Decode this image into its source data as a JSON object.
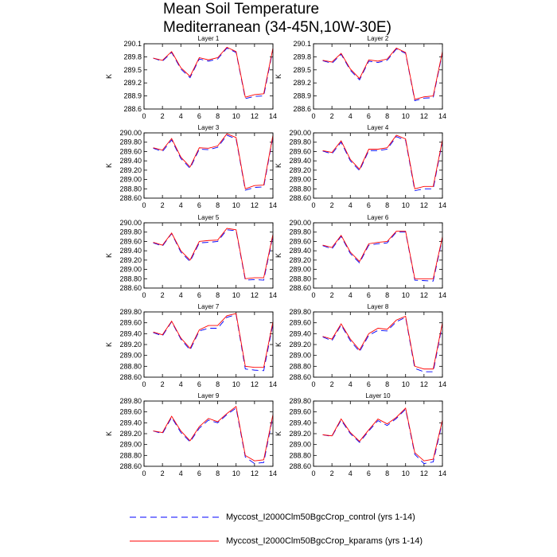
{
  "title": [
    "Mean Soil Temperature",
    "Mediterranean (34-45N,10W-30E)"
  ],
  "series": [
    {
      "name": "Myccost_I2000Clm50BgcCrop_control (yrs 1-14)",
      "color": "#0000ff",
      "dash": "dashed"
    },
    {
      "name": "Myccost_I2000Clm50BgcCrop_kparams (yrs 1-14)",
      "color": "#ff0000",
      "dash": "solid"
    }
  ],
  "chart_data": [
    {
      "type": "line",
      "title": "Layer 1",
      "ylabel": "K",
      "x": [
        1,
        2,
        3,
        4,
        5,
        6,
        7,
        8,
        9,
        10,
        11,
        12,
        13,
        14
      ],
      "xlim": [
        0,
        14
      ],
      "xticks": [
        0,
        2,
        4,
        6,
        8,
        10,
        12,
        14
      ],
      "ylim": [
        288.6,
        290.1
      ],
      "yticks": [
        288.6,
        288.9,
        289.2,
        289.5,
        289.8,
        290.1
      ],
      "series": [
        {
          "values": [
            289.77,
            289.7,
            289.9,
            289.52,
            289.32,
            289.75,
            289.7,
            289.75,
            290.0,
            289.9,
            288.84,
            288.89,
            288.9,
            289.97
          ]
        },
        {
          "values": [
            289.77,
            289.72,
            289.92,
            289.55,
            289.35,
            289.78,
            289.73,
            289.78,
            290.02,
            289.92,
            288.87,
            288.93,
            288.95,
            290.0
          ]
        }
      ]
    },
    {
      "type": "line",
      "title": "Layer 2",
      "ylabel": "K",
      "x": [
        1,
        2,
        3,
        4,
        5,
        6,
        7,
        8,
        9,
        10,
        11,
        12,
        13,
        14
      ],
      "xlim": [
        0,
        14
      ],
      "xticks": [
        0,
        2,
        4,
        6,
        8,
        10,
        12,
        14
      ],
      "ylim": [
        288.6,
        290.1
      ],
      "yticks": [
        288.6,
        288.9,
        289.2,
        289.5,
        289.8,
        290.1
      ],
      "series": [
        {
          "values": [
            289.71,
            289.65,
            289.86,
            289.49,
            289.27,
            289.7,
            289.67,
            289.72,
            289.98,
            289.88,
            288.79,
            288.85,
            288.86,
            289.89
          ]
        },
        {
          "values": [
            289.72,
            289.68,
            289.88,
            289.52,
            289.3,
            289.73,
            289.7,
            289.75,
            290.0,
            289.9,
            288.82,
            288.88,
            288.9,
            289.92
          ]
        }
      ]
    },
    {
      "type": "line",
      "title": "Layer 3",
      "ylabel": "K",
      "x": [
        1,
        2,
        3,
        4,
        5,
        6,
        7,
        8,
        9,
        10,
        11,
        12,
        13,
        14
      ],
      "xlim": [
        0,
        14
      ],
      "xticks": [
        0,
        2,
        4,
        6,
        8,
        10,
        12,
        14
      ],
      "ylim": [
        288.6,
        290.0
      ],
      "yticks": [
        {
          "value": 288.6,
          "label": "288.60"
        },
        {
          "value": 288.8,
          "label": "288.80"
        },
        {
          "value": 289.0,
          "label": "289.00"
        },
        {
          "value": 289.2,
          "label": "289.20"
        },
        {
          "value": 289.4,
          "label": "289.40"
        },
        {
          "value": 289.6,
          "label": "289.60"
        },
        {
          "value": 289.8,
          "label": "289.80"
        },
        {
          "value": 290.0,
          "label": "290.00"
        }
      ],
      "series": [
        {
          "values": [
            289.67,
            289.6,
            289.85,
            289.45,
            289.24,
            289.65,
            289.64,
            289.69,
            289.95,
            289.87,
            288.77,
            288.83,
            288.84,
            289.92
          ]
        },
        {
          "values": [
            289.68,
            289.63,
            289.88,
            289.48,
            289.27,
            289.68,
            289.67,
            289.72,
            289.98,
            289.9,
            288.8,
            288.87,
            288.88,
            289.95
          ]
        }
      ]
    },
    {
      "type": "line",
      "title": "Layer 4",
      "ylabel": "K",
      "x": [
        1,
        2,
        3,
        4,
        5,
        6,
        7,
        8,
        9,
        10,
        11,
        12,
        13,
        14
      ],
      "xlim": [
        0,
        14
      ],
      "xticks": [
        0,
        2,
        4,
        6,
        8,
        10,
        12,
        14
      ],
      "ylim": [
        288.6,
        290.0
      ],
      "yticks": [
        {
          "value": 288.6,
          "label": "288.60"
        },
        {
          "value": 288.8,
          "label": "288.80"
        },
        {
          "value": 289.0,
          "label": "289.00"
        },
        {
          "value": 289.2,
          "label": "289.20"
        },
        {
          "value": 289.4,
          "label": "289.40"
        },
        {
          "value": 289.6,
          "label": "289.60"
        },
        {
          "value": 289.8,
          "label": "289.80"
        },
        {
          "value": 290.0,
          "label": "290.00"
        }
      ],
      "series": [
        {
          "values": [
            289.61,
            289.55,
            289.8,
            289.4,
            289.19,
            289.62,
            289.62,
            289.65,
            289.92,
            289.84,
            288.76,
            288.8,
            288.8,
            289.82
          ]
        },
        {
          "values": [
            289.62,
            289.58,
            289.83,
            289.43,
            289.22,
            289.65,
            289.65,
            289.68,
            289.95,
            289.87,
            288.8,
            288.85,
            288.85,
            289.85
          ]
        }
      ]
    },
    {
      "type": "line",
      "title": "Layer 5",
      "ylabel": "K",
      "x": [
        1,
        2,
        3,
        4,
        5,
        6,
        7,
        8,
        9,
        10,
        11,
        12,
        13,
        14
      ],
      "xlim": [
        0,
        14
      ],
      "xticks": [
        0,
        2,
        4,
        6,
        8,
        10,
        12,
        14
      ],
      "ylim": [
        288.6,
        290.0
      ],
      "yticks": [
        {
          "value": 288.6,
          "label": "288.60"
        },
        {
          "value": 288.8,
          "label": "288.80"
        },
        {
          "value": 289.0,
          "label": "289.00"
        },
        {
          "value": 289.2,
          "label": "289.20"
        },
        {
          "value": 289.4,
          "label": "289.40"
        },
        {
          "value": 289.6,
          "label": "289.60"
        },
        {
          "value": 289.8,
          "label": "289.80"
        },
        {
          "value": 290.0,
          "label": "290.00"
        }
      ],
      "series": [
        {
          "values": [
            289.57,
            289.5,
            289.77,
            289.37,
            289.17,
            289.57,
            289.58,
            289.6,
            289.85,
            289.83,
            288.77,
            288.78,
            288.77,
            289.72
          ]
        },
        {
          "values": [
            289.58,
            289.52,
            289.78,
            289.4,
            289.2,
            289.6,
            289.62,
            289.63,
            289.88,
            289.85,
            288.8,
            288.82,
            288.82,
            289.75
          ]
        }
      ]
    },
    {
      "type": "line",
      "title": "Layer 6",
      "ylabel": "K",
      "x": [
        1,
        2,
        3,
        4,
        5,
        6,
        7,
        8,
        9,
        10,
        11,
        12,
        13,
        14
      ],
      "xlim": [
        0,
        14
      ],
      "xticks": [
        0,
        2,
        4,
        6,
        8,
        10,
        12,
        14
      ],
      "ylim": [
        288.6,
        290.0
      ],
      "yticks": [
        {
          "value": 288.6,
          "label": "288.60"
        },
        {
          "value": 288.8,
          "label": "288.80"
        },
        {
          "value": 289.0,
          "label": "289.00"
        },
        {
          "value": 289.2,
          "label": "289.20"
        },
        {
          "value": 289.4,
          "label": "289.40"
        },
        {
          "value": 289.6,
          "label": "289.60"
        },
        {
          "value": 289.8,
          "label": "289.80"
        },
        {
          "value": 290.0,
          "label": "290.00"
        }
      ],
      "series": [
        {
          "values": [
            289.51,
            289.44,
            289.71,
            289.34,
            289.14,
            289.52,
            289.55,
            289.57,
            289.8,
            289.8,
            288.77,
            288.76,
            288.75,
            289.67
          ]
        },
        {
          "values": [
            289.52,
            289.47,
            289.73,
            289.37,
            289.17,
            289.55,
            289.58,
            289.6,
            289.82,
            289.82,
            288.8,
            288.8,
            288.8,
            289.7
          ]
        }
      ]
    },
    {
      "type": "line",
      "title": "Layer 7",
      "ylabel": "K",
      "x": [
        1,
        2,
        3,
        4,
        5,
        6,
        7,
        8,
        9,
        10,
        11,
        12,
        13,
        14
      ],
      "xlim": [
        0,
        14
      ],
      "xticks": [
        0,
        2,
        4,
        6,
        8,
        10,
        12,
        14
      ],
      "ylim": [
        288.6,
        289.8
      ],
      "yticks": [
        {
          "value": 288.6,
          "label": "288.60"
        },
        {
          "value": 288.8,
          "label": "288.80"
        },
        {
          "value": 289.0,
          "label": "289.00"
        },
        {
          "value": 289.2,
          "label": "289.20"
        },
        {
          "value": 289.4,
          "label": "289.40"
        },
        {
          "value": 289.6,
          "label": "289.60"
        },
        {
          "value": 289.8,
          "label": "289.80"
        }
      ],
      "series": [
        {
          "values": [
            289.42,
            289.36,
            289.62,
            289.3,
            289.1,
            289.45,
            289.5,
            289.5,
            289.7,
            289.75,
            288.75,
            288.73,
            288.72,
            289.58
          ]
        },
        {
          "values": [
            289.43,
            289.38,
            289.63,
            289.32,
            289.13,
            289.47,
            289.55,
            289.55,
            289.73,
            289.77,
            288.8,
            288.78,
            288.78,
            289.62
          ]
        }
      ]
    },
    {
      "type": "line",
      "title": "Layer 8",
      "ylabel": "K",
      "x": [
        1,
        2,
        3,
        4,
        5,
        6,
        7,
        8,
        9,
        10,
        11,
        12,
        13,
        14
      ],
      "xlim": [
        0,
        14
      ],
      "xticks": [
        0,
        2,
        4,
        6,
        8,
        10,
        12,
        14
      ],
      "ylim": [
        288.6,
        289.8
      ],
      "yticks": [
        {
          "value": 288.6,
          "label": "288.60"
        },
        {
          "value": 288.8,
          "label": "288.80"
        },
        {
          "value": 289.0,
          "label": "289.00"
        },
        {
          "value": 289.2,
          "label": "289.20"
        },
        {
          "value": 289.4,
          "label": "289.40"
        },
        {
          "value": 289.6,
          "label": "289.60"
        },
        {
          "value": 289.8,
          "label": "289.80"
        }
      ],
      "series": [
        {
          "values": [
            289.34,
            289.27,
            289.56,
            289.27,
            289.07,
            289.37,
            289.46,
            289.45,
            289.62,
            289.7,
            288.76,
            288.7,
            288.7,
            289.57
          ]
        },
        {
          "values": [
            289.35,
            289.3,
            289.58,
            289.3,
            289.1,
            289.4,
            289.5,
            289.48,
            289.65,
            289.72,
            288.8,
            288.75,
            288.75,
            289.6
          ]
        }
      ]
    },
    {
      "type": "line",
      "title": "Layer 9",
      "ylabel": "K",
      "x": [
        1,
        2,
        3,
        4,
        5,
        6,
        7,
        8,
        9,
        10,
        11,
        12,
        13,
        14
      ],
      "xlim": [
        0,
        14
      ],
      "xticks": [
        0,
        2,
        4,
        6,
        8,
        10,
        12,
        14
      ],
      "ylim": [
        288.6,
        289.8
      ],
      "yticks": [
        {
          "value": 288.6,
          "label": "288.60"
        },
        {
          "value": 288.8,
          "label": "288.80"
        },
        {
          "value": 289.0,
          "label": "289.00"
        },
        {
          "value": 289.2,
          "label": "289.20"
        },
        {
          "value": 289.4,
          "label": "289.40"
        },
        {
          "value": 289.6,
          "label": "289.60"
        },
        {
          "value": 289.8,
          "label": "289.80"
        }
      ],
      "series": [
        {
          "values": [
            289.25,
            289.2,
            289.5,
            289.22,
            289.05,
            289.3,
            289.45,
            289.4,
            289.55,
            289.67,
            288.77,
            288.65,
            288.67,
            289.52
          ]
        },
        {
          "values": [
            289.25,
            289.22,
            289.52,
            289.25,
            289.07,
            289.33,
            289.48,
            289.42,
            289.57,
            289.7,
            288.8,
            288.7,
            288.72,
            289.55
          ]
        }
      ]
    },
    {
      "type": "line",
      "title": "Layer 10",
      "ylabel": "K",
      "x": [
        1,
        2,
        3,
        4,
        5,
        6,
        7,
        8,
        9,
        10,
        11,
        12,
        13,
        14
      ],
      "xlim": [
        0,
        14
      ],
      "xticks": [
        0,
        2,
        4,
        6,
        8,
        10,
        12,
        14
      ],
      "ylim": [
        288.6,
        289.8
      ],
      "yticks": [
        {
          "value": 288.6,
          "label": "288.60"
        },
        {
          "value": 288.8,
          "label": "288.80"
        },
        {
          "value": 289.0,
          "label": "289.00"
        },
        {
          "value": 289.2,
          "label": "289.20"
        },
        {
          "value": 289.4,
          "label": "289.40"
        },
        {
          "value": 289.6,
          "label": "289.60"
        },
        {
          "value": 289.8,
          "label": "289.80"
        }
      ],
      "series": [
        {
          "values": [
            289.18,
            289.15,
            289.45,
            289.2,
            289.04,
            289.25,
            289.44,
            289.35,
            289.48,
            289.65,
            288.82,
            288.65,
            288.68,
            289.42
          ]
        },
        {
          "values": [
            289.18,
            289.16,
            289.47,
            289.22,
            289.06,
            289.27,
            289.47,
            289.38,
            289.5,
            289.67,
            288.85,
            288.7,
            288.73,
            289.45
          ]
        }
      ]
    }
  ]
}
